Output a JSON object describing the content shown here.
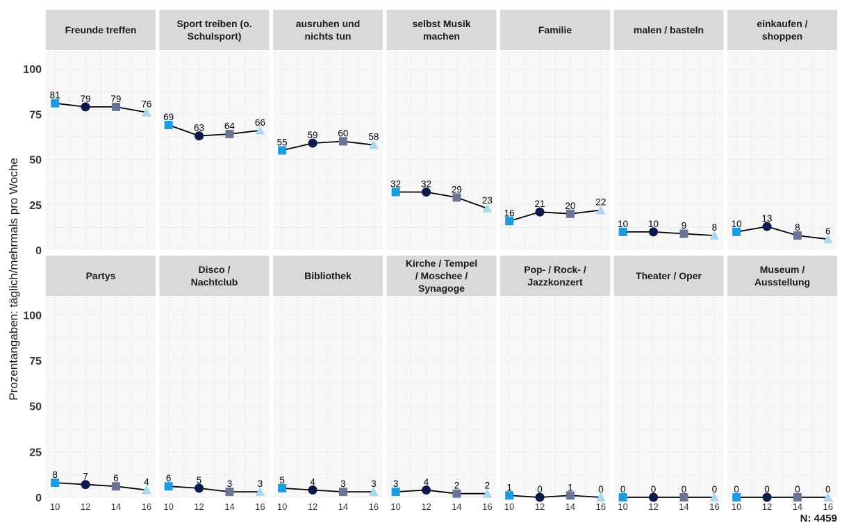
{
  "chart_data": {
    "type": "line",
    "layout": "facets-2x7",
    "ylabel": "Prozentangaben: täglich/mehrmals pro Woche",
    "x": [
      10,
      12,
      14,
      16
    ],
    "xticks": [
      "10",
      "12",
      "14",
      "16"
    ],
    "yticks": [
      "0",
      "25",
      "50",
      "75",
      "100"
    ],
    "ylim": [
      0,
      110
    ],
    "grid": true,
    "note": "N: 4459",
    "marker_colors": [
      "#1b9be0",
      "#0b1a4a",
      "#6b7494",
      "#a8d8f0"
    ],
    "marker_shapes": [
      "square",
      "circle",
      "square",
      "triangle"
    ],
    "facets": [
      {
        "title": [
          "Freunde treffen"
        ],
        "values": [
          81,
          79,
          79,
          76
        ]
      },
      {
        "title": [
          "Sport treiben (o.",
          "Schulsport)"
        ],
        "values": [
          69,
          63,
          64,
          66
        ]
      },
      {
        "title": [
          "ausruhen und",
          "nichts tun"
        ],
        "values": [
          55,
          59,
          60,
          58
        ]
      },
      {
        "title": [
          "selbst Musik",
          "machen"
        ],
        "values": [
          32,
          32,
          29,
          23
        ]
      },
      {
        "title": [
          "Familie"
        ],
        "values": [
          16,
          21,
          20,
          22
        ]
      },
      {
        "title": [
          "malen / basteln"
        ],
        "values": [
          10,
          10,
          9,
          8
        ]
      },
      {
        "title": [
          "einkaufen /",
          "shoppen"
        ],
        "values": [
          10,
          13,
          8,
          6
        ]
      },
      {
        "title": [
          "Partys"
        ],
        "values": [
          8,
          7,
          6,
          4
        ]
      },
      {
        "title": [
          "Disco /",
          "Nachtclub"
        ],
        "values": [
          6,
          5,
          3,
          3
        ]
      },
      {
        "title": [
          "Bibliothek"
        ],
        "values": [
          5,
          4,
          3,
          3
        ]
      },
      {
        "title": [
          "Kirche / Tempel",
          "/ Moschee /",
          "Synagoge"
        ],
        "values": [
          3,
          4,
          2,
          2
        ]
      },
      {
        "title": [
          "Pop- / Rock- /",
          "Jazzkonzert"
        ],
        "values": [
          1,
          0,
          1,
          0
        ]
      },
      {
        "title": [
          "Theater / Oper"
        ],
        "values": [
          0,
          0,
          0,
          0
        ]
      },
      {
        "title": [
          "Museum /",
          "Ausstellung"
        ],
        "values": [
          0,
          0,
          0,
          0
        ]
      }
    ]
  }
}
